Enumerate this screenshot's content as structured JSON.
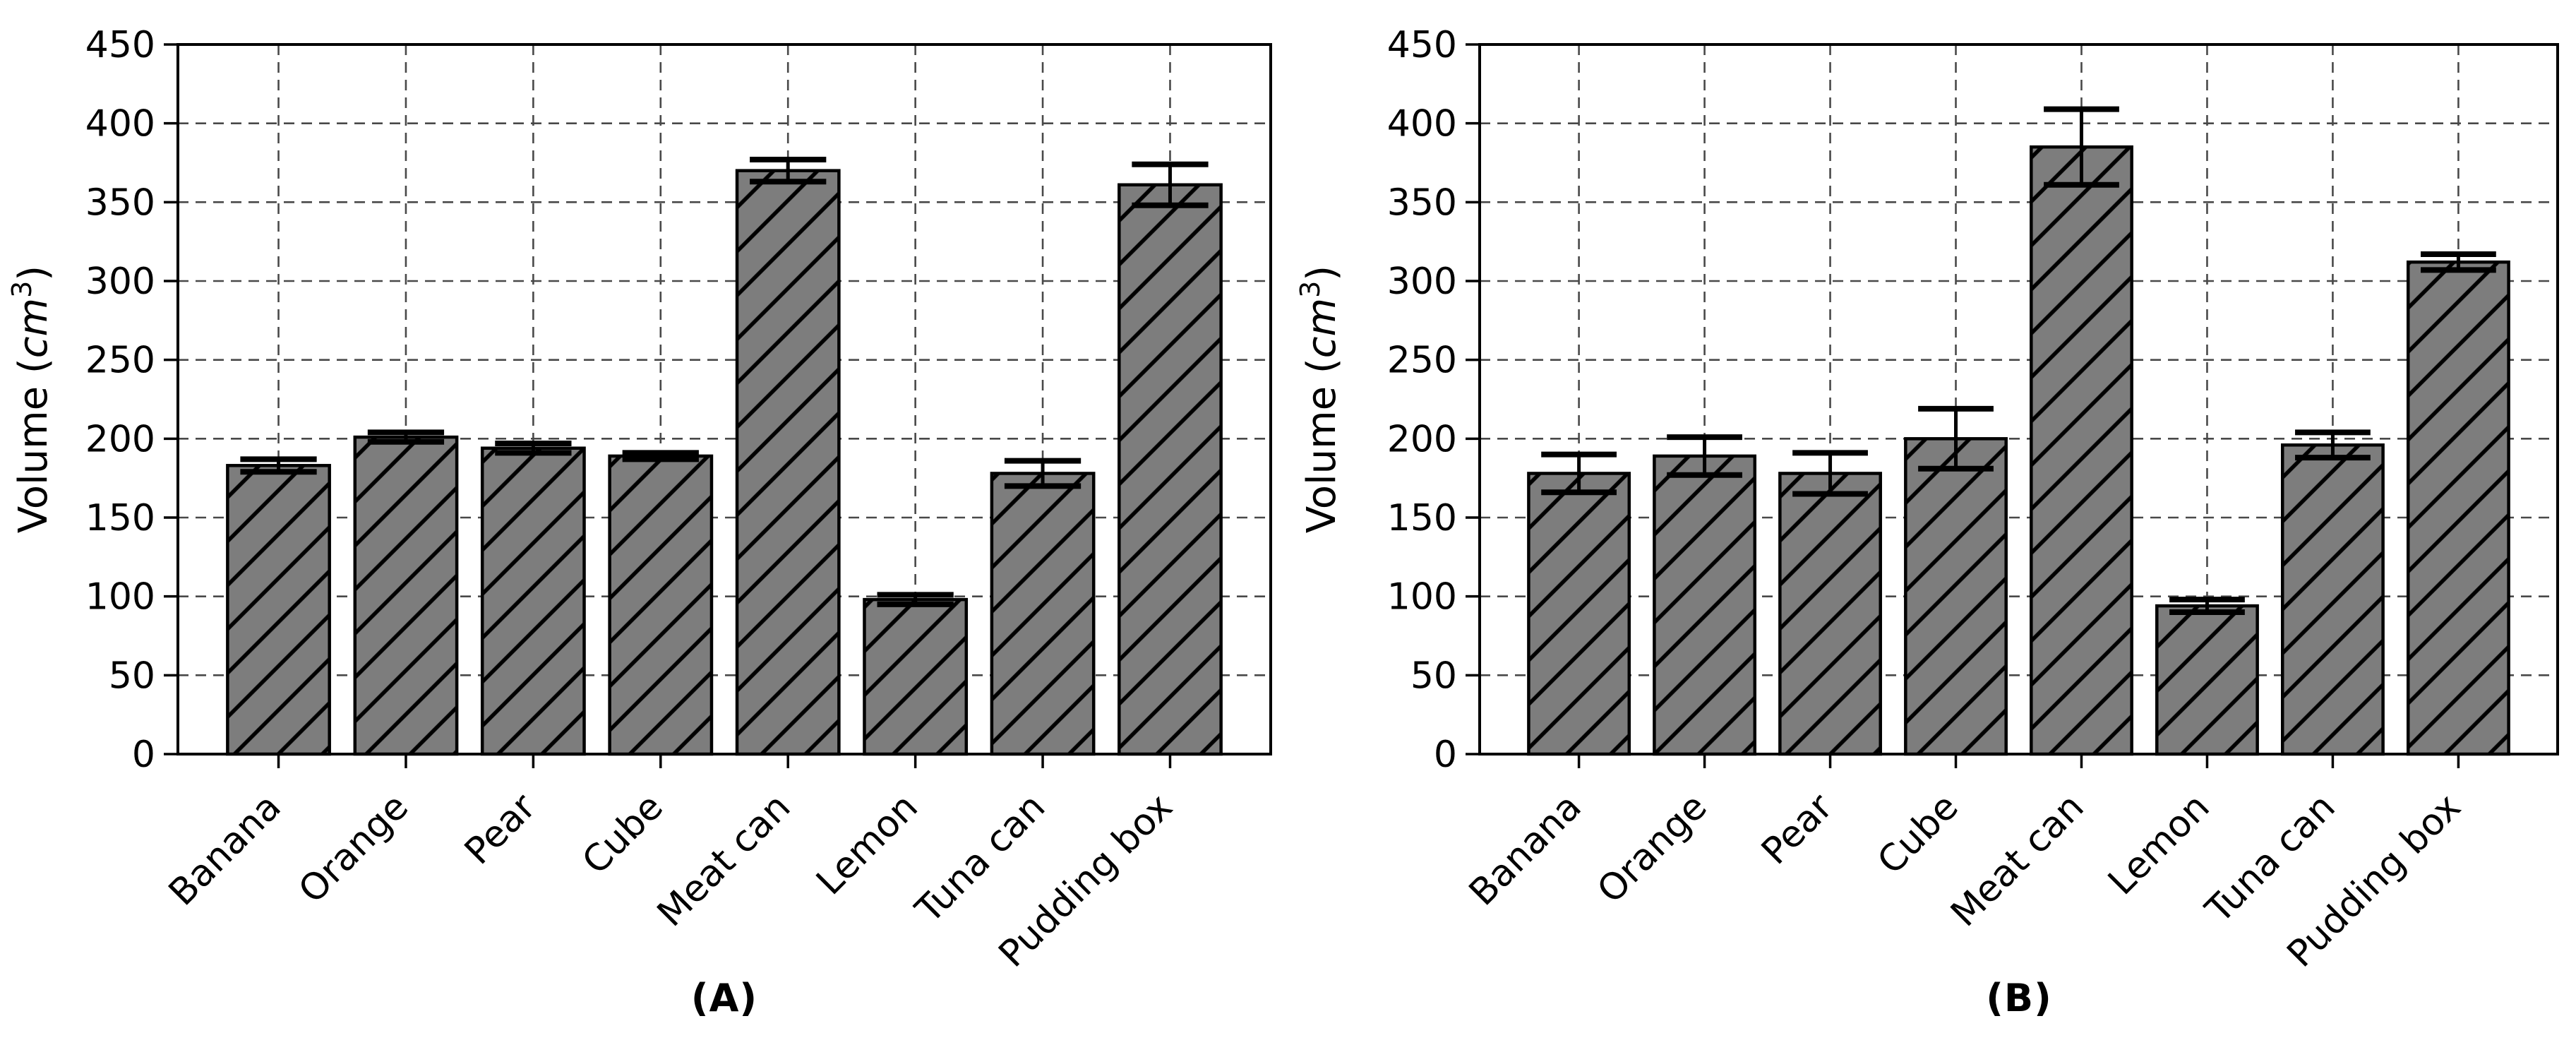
{
  "figure": {
    "background": "#ffffff",
    "bar_fill": "#7d7d7d",
    "bar_edge": "#000000",
    "hatch_color": "#000000",
    "grid_color": "#2a2a2a",
    "spine_color": "#000000",
    "text_color": "#000000",
    "error_color": "#000000"
  },
  "chart_data": [
    {
      "id": "A",
      "type": "bar",
      "caption": "(A)",
      "title": "",
      "xlabel": "",
      "ylabel": "Volume (cm3)",
      "ylabel_parts": {
        "prefix": "Volume (",
        "italic": "cm",
        "sup": "3",
        "suffix": ")"
      },
      "categories": [
        "Banana",
        "Orange",
        "Pear",
        "Cube",
        "Meat can",
        "Lemon",
        "Tuna can",
        "Pudding box"
      ],
      "values": [
        183,
        201,
        194,
        189,
        370,
        98,
        178,
        361
      ],
      "errors": [
        4,
        3,
        3,
        2,
        7,
        3,
        8,
        13
      ],
      "ylim": [
        0,
        450
      ],
      "yticks": [
        0,
        50,
        100,
        150,
        200,
        250,
        300,
        350,
        400,
        450
      ],
      "grid": "dashed",
      "legend": "none",
      "hatch": "///",
      "bar_width_fraction": 0.8
    },
    {
      "id": "B",
      "type": "bar",
      "caption": "(B)",
      "title": "",
      "xlabel": "",
      "ylabel": "Volume (cm3)",
      "ylabel_parts": {
        "prefix": "Volume (",
        "italic": "cm",
        "sup": "3",
        "suffix": ")"
      },
      "categories": [
        "Banana",
        "Orange",
        "Pear",
        "Cube",
        "Meat can",
        "Lemon",
        "Tuna can",
        "Pudding box"
      ],
      "values": [
        178,
        189,
        178,
        200,
        385,
        94,
        196,
        312
      ],
      "errors": [
        12,
        12,
        13,
        19,
        24,
        4,
        8,
        5
      ],
      "ylim": [
        0,
        450
      ],
      "yticks": [
        0,
        50,
        100,
        150,
        200,
        250,
        300,
        350,
        400,
        450
      ],
      "grid": "dashed",
      "legend": "none",
      "hatch": "///",
      "bar_width_fraction": 0.8
    }
  ]
}
